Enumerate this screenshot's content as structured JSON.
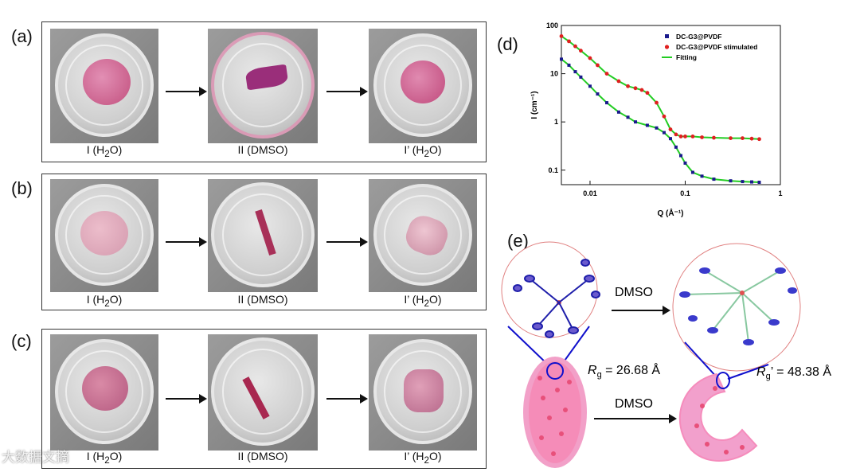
{
  "panels": {
    "a": {
      "label": "(a)",
      "captions": [
        "I (H",
        "2",
        "O)",
        "II (DMSO)",
        "I’ (H",
        "2",
        "O)"
      ]
    },
    "b": {
      "label": "(b)"
    },
    "c": {
      "label": "(c)"
    },
    "d": {
      "label": "(d)"
    },
    "e": {
      "label": "(e)"
    }
  },
  "captions": {
    "state1_pre": "I (H",
    "sub": "2",
    "state1_post": "O)",
    "state2": "II (DMSO)",
    "state3_pre": "I’ (H",
    "state3_post": "O)"
  },
  "schematic": {
    "dmso_top": "DMSO",
    "dmso_bottom": "DMSO",
    "rg_symbol": "R",
    "rg_sub": "g",
    "rg_value": " = 26.68 Å",
    "rg2_prime": "’",
    "rg2_value": " = 48.38 Å"
  },
  "watermark": "大数据文摘",
  "chart_data": {
    "type": "scatter",
    "xscale": "log",
    "yscale": "log",
    "xlim": [
      0.005,
      1
    ],
    "ylim": [
      0.05,
      100
    ],
    "xlabel": "Q (Å⁻¹)",
    "ylabel": "I (cm⁻¹)",
    "xticks": [
      "0.01",
      "0.1",
      "1"
    ],
    "yticks": [
      "0.1",
      "1",
      "10",
      "100"
    ],
    "legend_position": "top-right",
    "series": [
      {
        "name": "DC-G3@PVDF",
        "marker": "square",
        "color": "#1a1a8c",
        "x": [
          0.005,
          0.006,
          0.007,
          0.008,
          0.01,
          0.012,
          0.015,
          0.02,
          0.025,
          0.03,
          0.04,
          0.05,
          0.06,
          0.07,
          0.08,
          0.09,
          0.1,
          0.12,
          0.15,
          0.2,
          0.3,
          0.4,
          0.5,
          0.6
        ],
        "y": [
          20,
          15,
          11,
          8.5,
          5.5,
          3.8,
          2.5,
          1.6,
          1.25,
          1.0,
          0.85,
          0.75,
          0.6,
          0.45,
          0.3,
          0.2,
          0.14,
          0.09,
          0.075,
          0.065,
          0.06,
          0.058,
          0.057,
          0.056
        ]
      },
      {
        "name": "DC-G3@PVDF stimulated",
        "marker": "circle",
        "color": "#e02020",
        "x": [
          0.005,
          0.006,
          0.007,
          0.008,
          0.01,
          0.012,
          0.015,
          0.02,
          0.025,
          0.03,
          0.035,
          0.04,
          0.05,
          0.06,
          0.07,
          0.08,
          0.09,
          0.1,
          0.12,
          0.15,
          0.2,
          0.3,
          0.4,
          0.5,
          0.6
        ],
        "y": [
          60,
          47,
          37,
          30,
          21,
          15,
          10,
          7,
          5.5,
          5.0,
          4.6,
          4.0,
          2.5,
          1.3,
          0.7,
          0.55,
          0.5,
          0.5,
          0.5,
          0.48,
          0.47,
          0.46,
          0.46,
          0.45,
          0.44
        ]
      },
      {
        "name": "Fitting",
        "marker": "line",
        "color": "#22cc22"
      }
    ]
  }
}
